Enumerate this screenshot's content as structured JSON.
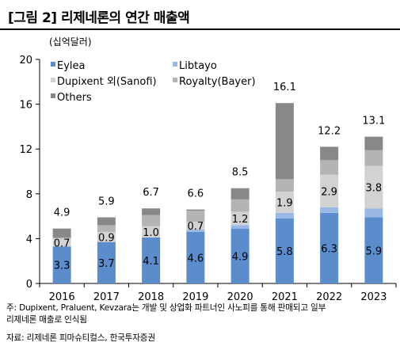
{
  "header": {
    "title": "[그림 2] 리제네론의 연간 매출액"
  },
  "chart_data": {
    "type": "bar",
    "stacked": true,
    "ylabel": "(십억달러)",
    "ylim": [
      0,
      20
    ],
    "yticks": [
      "0",
      "4",
      "8",
      "12",
      "16",
      "20"
    ],
    "grid": false,
    "legend": "top-left, inside plot, two columns",
    "categories": [
      "2016",
      "2017",
      "2018",
      "2019",
      "2020",
      "2021",
      "2022",
      "2023"
    ],
    "series": [
      {
        "name": "Eylea",
        "color": "#5b8ccc",
        "labels": true,
        "values": [
          3.3,
          3.7,
          4.1,
          4.6,
          4.9,
          5.8,
          6.3,
          5.9
        ]
      },
      {
        "name": "Libtayo",
        "color": "#9ab8e6",
        "labels": false,
        "values": [
          0.0,
          0.0,
          0.0,
          0.2,
          0.3,
          0.5,
          0.5,
          0.8
        ]
      },
      {
        "name": "Dupixent 외(Sanofi)",
        "color": "#d2d2d2",
        "labels": true,
        "values": [
          0.7,
          0.9,
          1.0,
          0.7,
          1.2,
          1.9,
          2.9,
          3.8
        ]
      },
      {
        "name": "Royalty(Bayer)",
        "color": "#b4b4b4",
        "labels": false,
        "values": [
          0.1,
          0.6,
          1.0,
          1.0,
          1.1,
          1.1,
          1.3,
          1.4
        ]
      },
      {
        "name": "Others",
        "color": "#888888",
        "labels": false,
        "values": [
          0.8,
          0.7,
          0.6,
          0.1,
          1.0,
          6.8,
          1.2,
          1.2
        ]
      }
    ],
    "totals": [
      "4.9",
      "5.9",
      "6.7",
      "6.6",
      "8.5",
      "16.1",
      "12.2",
      "13.1"
    ]
  },
  "footnote": {
    "line1": "주: Dupixent, Praluent, Kevzara는 개발 및 상업화 파트너인 사노피를 통해 판매되고 일부",
    "line2": "리제네론 매출로 인식됨",
    "source": "자료: 리제네론 피마슈티컬스, 한국투자증권"
  }
}
